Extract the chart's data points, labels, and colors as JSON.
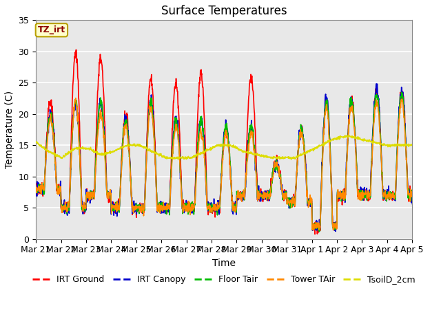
{
  "title": "Surface Temperatures",
  "xlabel": "Time",
  "ylabel": "Temperature (C)",
  "ylim": [
    0,
    35
  ],
  "n_days": 15,
  "figure_bg": "#ffffff",
  "plot_bg": "#e8e8e8",
  "annotation_text": "TZ_irt",
  "annotation_color": "#8b0000",
  "annotation_bg": "#ffffcc",
  "annotation_border": "#b8a000",
  "series": [
    {
      "label": "IRT Ground",
      "color": "#ff0000"
    },
    {
      "label": "IRT Canopy",
      "color": "#0000cc"
    },
    {
      "label": "Floor Tair",
      "color": "#00bb00"
    },
    {
      "label": "Tower TAir",
      "color": "#ff8800"
    },
    {
      "label": "TsoilD_2cm",
      "color": "#dddd00"
    }
  ],
  "tick_labels": [
    "Mar 21",
    "Mar 22",
    "Mar 23",
    "Mar 24",
    "Mar 25",
    "Mar 26",
    "Mar 27",
    "Mar 28",
    "Mar 29",
    "Mar 30",
    "Mar 31",
    "Apr 1",
    "Apr 2",
    "Apr 3",
    "Apr 4",
    "Apr 5"
  ],
  "grid_color": "#ffffff",
  "irt_g_peaks": [
    22,
    30,
    29,
    20,
    25.5,
    25,
    26.5,
    17.5,
    26,
    12.5,
    17.5,
    22,
    22.5,
    23.5,
    23.5
  ],
  "irt_c_peaks": [
    20,
    22,
    22,
    19,
    22,
    19,
    19,
    18,
    18,
    12,
    17.5,
    23,
    22,
    24,
    23.5
  ],
  "fl_peaks": [
    20,
    22,
    22,
    19,
    22,
    19,
    19,
    18,
    18,
    12,
    17.5,
    22,
    22,
    23,
    23
  ],
  "ta_peaks": [
    19,
    22,
    20,
    18,
    21,
    18,
    17,
    17,
    17,
    12,
    17,
    21,
    21,
    22,
    22
  ],
  "night_bases": [
    8,
    5,
    7,
    5,
    5,
    5,
    5,
    5,
    7,
    7,
    6,
    2,
    7,
    7,
    7
  ],
  "tsoil_vals": [
    15.5,
    14,
    13,
    14.5,
    14.5,
    13.5,
    14,
    15,
    15,
    14,
    13,
    13,
    13,
    14,
    15,
    15,
    14,
    13.5,
    13,
    13,
    13,
    14,
    15,
    16,
    16.5,
    16,
    15.5,
    15,
    15,
    15
  ],
  "lw": 1.2
}
